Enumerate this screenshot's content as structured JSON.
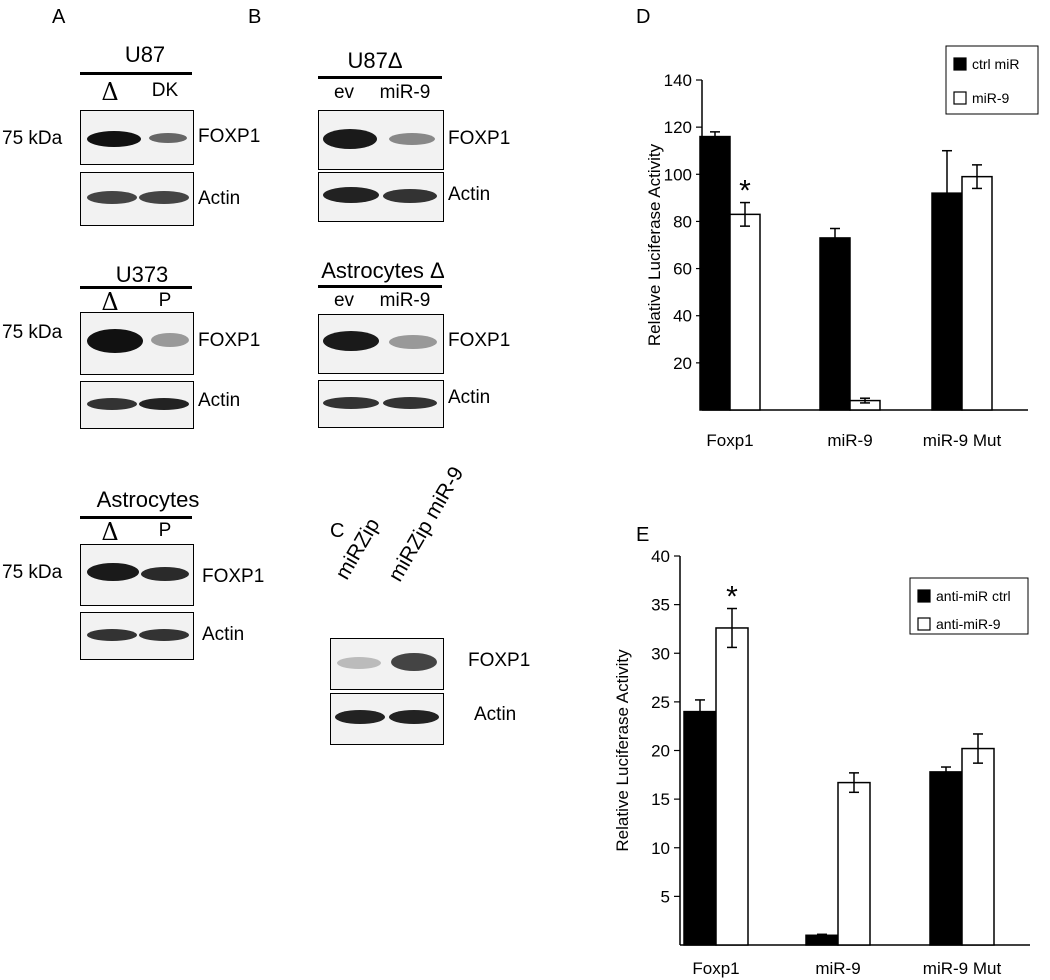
{
  "panel_letters": {
    "a": "A",
    "b": "B",
    "c": "C",
    "d": "D",
    "e": "E"
  },
  "common": {
    "kda": "75 kDa",
    "foxp1": "FOXP1",
    "actin": "Actin"
  },
  "panel_a": {
    "blots": [
      {
        "cell": "U87",
        "lane1": "Δ",
        "lane2": "DK"
      },
      {
        "cell": "U373",
        "lane1": "Δ",
        "lane2": "P"
      },
      {
        "cell": "Astrocytes",
        "lane1": "Δ",
        "lane2": "P"
      }
    ]
  },
  "panel_b": {
    "blots": [
      {
        "cell": "U87Δ",
        "lane1": "ev",
        "lane2": "miR-9"
      },
      {
        "cell": "Astrocytes Δ",
        "lane1": "ev",
        "lane2": "miR-9"
      }
    ]
  },
  "panel_c": {
    "lane1": "miRZip",
    "lane2": "miRZip miR-9"
  },
  "chart_data": [
    {
      "panel": "D",
      "type": "bar",
      "ylabel": "Relative Luciferase Activity",
      "xlabel": "",
      "categories": [
        "Foxp1",
        "miR-9",
        "miR-9 Mut"
      ],
      "series": [
        {
          "name": "ctrl miR",
          "color": "#000000",
          "values": [
            116,
            73,
            92
          ],
          "errors": [
            2,
            4,
            18
          ]
        },
        {
          "name": "miR-9",
          "color": "#ffffff",
          "values": [
            83,
            4,
            99
          ],
          "errors": [
            5,
            1,
            5
          ]
        }
      ],
      "ylim": [
        0,
        140
      ],
      "yticks": [
        20,
        40,
        60,
        80,
        100,
        120,
        140
      ],
      "significance": [
        {
          "category": 0,
          "series": 1,
          "marker": "*"
        }
      ],
      "legend_position": "top-right",
      "grid": false
    },
    {
      "panel": "E",
      "type": "bar",
      "ylabel": "Relative Luciferase Activity",
      "xlabel": "",
      "categories": [
        "Foxp1",
        "miR-9",
        "miR-9 Mut"
      ],
      "series": [
        {
          "name": "anti-miR ctrl",
          "color": "#000000",
          "values": [
            24,
            1,
            17.8
          ],
          "errors": [
            1.2,
            0.1,
            0.5
          ]
        },
        {
          "name": "anti-miR-9",
          "color": "#ffffff",
          "values": [
            32.6,
            16.7,
            20.2
          ],
          "errors": [
            2,
            1,
            1.5
          ]
        }
      ],
      "ylim": [
        0,
        40
      ],
      "yticks": [
        5,
        10,
        15,
        20,
        25,
        30,
        35,
        40
      ],
      "significance": [
        {
          "category": 0,
          "series": 1,
          "marker": "*"
        }
      ],
      "legend_position": "top-right",
      "grid": false
    }
  ]
}
